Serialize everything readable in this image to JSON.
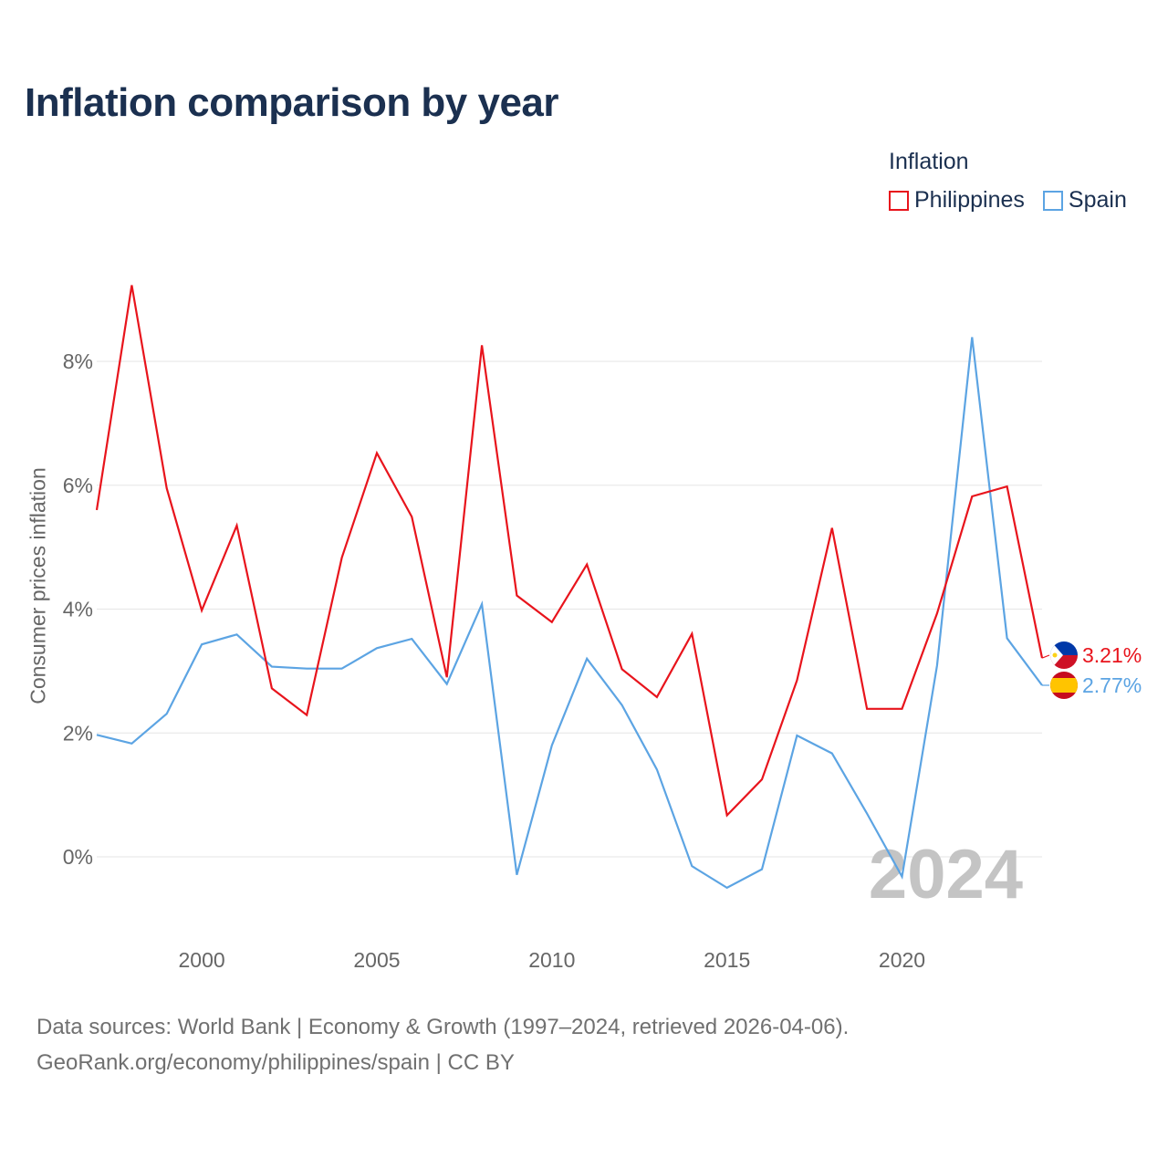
{
  "title": "Inflation comparison by year",
  "legend": {
    "title": "Inflation",
    "items": [
      {
        "label": "Philippines",
        "color": "#e8141c"
      },
      {
        "label": "Spain",
        "color": "#5ca4e3"
      }
    ]
  },
  "footer": {
    "line1": "Data sources: World Bank | Economy & Growth (1997–2024, retrieved 2026-04-06).",
    "line2": "GeoRank.org/economy/philippines/spain | CC BY"
  },
  "chart_data": {
    "type": "line",
    "title": "Inflation comparison by year",
    "xlabel": "",
    "ylabel": "Consumer prices inflation",
    "xlim": [
      1997,
      2024
    ],
    "ylim": [
      -1.2,
      9.5
    ],
    "x_ticks": [
      2000,
      2005,
      2010,
      2015,
      2020
    ],
    "y_ticks": [
      0,
      2,
      4,
      6,
      8
    ],
    "y_tick_labels": [
      "0%",
      "2%",
      "4%",
      "6%",
      "8%"
    ],
    "grid": true,
    "legend_position": "top-right",
    "watermark_year": "2024",
    "x": [
      1997,
      1998,
      1999,
      2000,
      2001,
      2002,
      2003,
      2004,
      2005,
      2006,
      2007,
      2008,
      2009,
      2010,
      2011,
      2012,
      2013,
      2014,
      2015,
      2016,
      2017,
      2018,
      2019,
      2020,
      2021,
      2022,
      2023,
      2024
    ],
    "series": [
      {
        "name": "Philippines",
        "color": "#e8141c",
        "end_label": "3.21%",
        "values": [
          5.6,
          9.23,
          5.95,
          3.98,
          5.35,
          2.72,
          2.29,
          4.83,
          6.52,
          5.49,
          2.9,
          8.26,
          4.22,
          3.79,
          4.72,
          3.03,
          2.58,
          3.6,
          0.67,
          1.25,
          2.85,
          5.31,
          2.39,
          2.39,
          3.93,
          5.82,
          5.98,
          3.21
        ]
      },
      {
        "name": "Spain",
        "color": "#5ca4e3",
        "end_label": "2.77%",
        "values": [
          1.97,
          1.83,
          2.31,
          3.43,
          3.59,
          3.07,
          3.04,
          3.04,
          3.37,
          3.52,
          2.79,
          4.08,
          -0.29,
          1.8,
          3.2,
          2.45,
          1.41,
          -0.15,
          -0.5,
          -0.2,
          1.96,
          1.67,
          0.7,
          -0.32,
          3.09,
          8.39,
          3.53,
          2.77
        ]
      }
    ]
  }
}
